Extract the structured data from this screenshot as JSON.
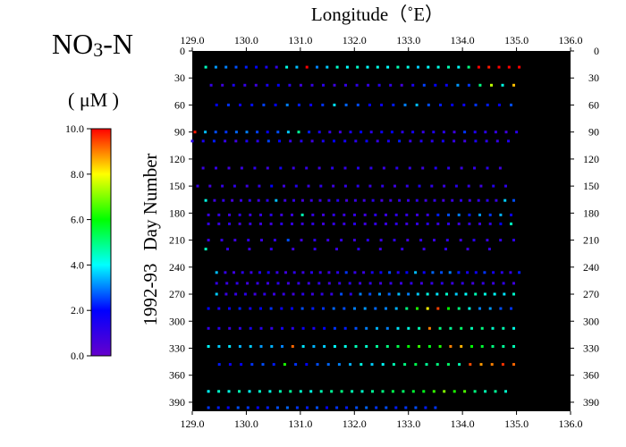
{
  "chart_data": {
    "type": "scatter",
    "title": {
      "base": "NO",
      "subscript": "3",
      "suffix": "-N"
    },
    "unit_label": "( μM )",
    "xlabel": "Longitude（˚E）",
    "ylabel_prefix": "1992-93",
    "ylabel": "Day  Number",
    "xlim": [
      129.0,
      136.0
    ],
    "ylim": [
      0,
      400
    ],
    "y_inverted": true,
    "x_ticks": [
      "129.0",
      "130.0",
      "131.0",
      "132.0",
      "133.0",
      "134.0",
      "135.0",
      "136.0"
    ],
    "y_ticks": [
      "0",
      "30",
      "60",
      "90",
      "120",
      "150",
      "180",
      "210",
      "240",
      "270",
      "300",
      "330",
      "360",
      "390"
    ],
    "colorbar": {
      "min": 0.0,
      "max": 10.0,
      "ticks": [
        "0.0",
        "2.0",
        "4.0",
        "6.0",
        "8.0",
        "10.0"
      ]
    },
    "plot_background": "#000000",
    "colormap": [
      "#6600cc",
      "#0000ff",
      "#00ffff",
      "#00ff00",
      "#ffff00",
      "#ff0000"
    ],
    "rows": [
      {
        "day": 18,
        "x0": 129.25,
        "x1": 135.05,
        "n": 32,
        "vals": [
          4.5,
          3.2,
          3.0,
          2.6,
          2.2,
          2.0,
          1.5,
          1.0,
          4.2,
          3.5,
          10.0,
          3.0,
          3.6,
          4.4,
          4.0,
          4.4,
          4.0,
          4.2,
          4.0,
          4.6,
          4.2,
          3.6,
          4.0,
          4.2,
          4.6,
          4.0,
          5.0,
          10.0,
          9.8,
          10.0,
          10.0,
          10.0
        ]
      },
      {
        "day": 38,
        "x0": 129.35,
        "x1": 134.95,
        "n": 28,
        "vals": [
          1.0,
          0.8,
          1.5,
          1.0,
          0.8,
          1.5,
          2.0,
          1.2,
          0.8,
          1.0,
          1.2,
          0.8,
          1.0,
          1.1,
          1.0,
          1.3,
          1.1,
          0.7,
          1.5,
          2.5,
          2.0,
          1.8,
          3.2,
          2.4,
          5.0,
          7.5,
          4.2,
          8.5
        ]
      },
      {
        "day": 60,
        "x0": 129.45,
        "x1": 134.9,
        "n": 26,
        "vals": [
          2.0,
          2.4,
          1.8,
          2.1,
          2.5,
          2.0,
          3.0,
          2.2,
          1.8,
          2.4,
          3.8,
          2.8,
          2.6,
          2.0,
          1.8,
          2.2,
          3.0,
          3.5,
          2.6,
          2.2,
          2.0,
          1.8,
          2.4,
          2.2,
          2.0,
          2.6
        ]
      },
      {
        "day": 90,
        "x0": 129.05,
        "x1": 135.0,
        "n": 32,
        "vals": [
          9.8,
          3.5,
          2.6,
          2.4,
          2.8,
          3.0,
          2.5,
          2.0,
          2.6,
          3.6,
          4.8,
          2.2,
          1.5,
          1.0,
          0.8,
          1.5,
          2.0,
          1.2,
          1.8,
          2.0,
          1.2,
          1.6,
          1.0,
          1.4,
          1.2,
          0.8,
          2.4,
          1.4,
          1.2,
          1.0,
          0.8,
          1.2
        ]
      },
      {
        "day": 100,
        "x0": 129.0,
        "x1": 134.85,
        "n": 30,
        "vals": [
          1.2,
          1.5,
          2.2,
          1.0,
          0.8,
          1.5,
          1.2,
          2.5,
          2.0,
          1.0,
          1.3,
          0.8,
          1.5,
          2.0,
          1.6,
          1.2,
          1.8,
          1.0,
          1.5,
          2.2,
          1.0,
          1.4,
          1.2,
          1.6,
          1.0,
          0.8,
          1.5,
          1.2,
          1.0,
          1.4
        ]
      },
      {
        "day": 130,
        "x0": 129.2,
        "x1": 134.7,
        "n": 24,
        "vals": [
          0.9,
          1.0,
          0.7,
          0.9,
          1.1,
          0.8,
          1.6,
          0.9,
          1.0,
          0.8,
          1.2,
          1.0,
          1.3,
          1.1,
          0.9,
          1.2,
          1.0,
          0.8,
          1.4,
          1.1,
          0.9,
          1.0,
          1.2,
          0.8
        ]
      },
      {
        "day": 150,
        "x0": 129.1,
        "x1": 134.8,
        "n": 26,
        "vals": [
          0.9,
          0.7,
          1.0,
          1.1,
          0.8,
          1.0,
          2.0,
          0.8,
          1.3,
          0.9,
          1.1,
          0.8,
          1.0,
          1.2,
          0.9,
          1.1,
          0.8,
          1.0,
          1.4,
          1.1,
          0.9,
          1.2,
          1.0,
          0.8,
          1.3,
          1.1
        ]
      },
      {
        "day": 166,
        "x0": 129.25,
        "x1": 134.95,
        "n": 36,
        "vals": [
          4.2,
          0.8,
          1.0,
          0.7,
          0.9,
          1.1,
          0.8,
          1.2,
          3.5,
          0.8,
          1.0,
          0.7,
          0.9,
          0.8,
          1.0,
          1.3,
          0.7,
          0.9,
          0.8,
          1.2,
          0.7,
          0.8,
          1.0,
          0.9,
          1.1,
          0.8,
          1.0,
          0.7,
          0.9,
          1.1,
          0.8,
          1.0,
          1.2,
          0.9,
          3.6,
          2.6
        ]
      },
      {
        "day": 182,
        "x0": 129.3,
        "x1": 134.9,
        "n": 30,
        "vals": [
          0.9,
          1.0,
          0.8,
          1.1,
          0.9,
          1.0,
          1.2,
          0.8,
          0.9,
          4.6,
          1.0,
          0.8,
          1.1,
          0.9,
          1.0,
          0.8,
          1.2,
          0.9,
          1.1,
          1.0,
          0.8,
          0.9,
          2.2,
          2.6,
          3.0,
          2.2,
          3.2,
          2.4,
          3.4,
          1.8
        ]
      },
      {
        "day": 192,
        "x0": 129.3,
        "x1": 134.9,
        "n": 30,
        "vals": [
          1.0,
          0.9,
          1.1,
          0.8,
          1.0,
          0.9,
          0.8,
          1.2,
          1.0,
          0.9,
          1.1,
          0.8,
          1.0,
          0.9,
          1.2,
          0.8,
          1.0,
          0.9,
          1.1,
          0.8,
          1.0,
          1.2,
          0.9,
          1.1,
          0.8,
          1.0,
          0.9,
          1.1,
          2.0,
          4.5
        ]
      },
      {
        "day": 210,
        "x0": 129.3,
        "x1": 134.95,
        "n": 24,
        "vals": [
          0.9,
          1.0,
          0.8,
          1.1,
          0.9,
          1.0,
          2.6,
          0.8,
          1.1,
          0.9,
          1.0,
          0.8,
          1.2,
          0.9,
          1.1,
          0.8,
          1.0,
          0.9,
          1.1,
          0.8,
          1.2,
          0.9,
          1.0,
          1.1
        ]
      },
      {
        "day": 220,
        "x0": 129.25,
        "x1": 134.5,
        "n": 14,
        "vals": [
          4.5,
          1.0,
          0.9,
          1.1,
          0.8,
          1.0,
          0.9,
          1.2,
          0.8,
          1.0,
          0.9,
          1.1,
          0.8,
          1.0
        ]
      },
      {
        "day": 246,
        "x0": 129.45,
        "x1": 135.05,
        "n": 36,
        "vals": [
          3.5,
          1.0,
          0.8,
          1.2,
          0.9,
          1.4,
          1.6,
          1.0,
          0.8,
          1.1,
          0.9,
          1.3,
          1.0,
          0.8,
          1.2,
          2.4,
          1.0,
          0.9,
          1.6,
          1.8,
          2.6,
          1.4,
          2.0,
          3.5,
          1.8,
          2.8,
          2.6,
          3.0,
          2.2,
          1.6,
          1.8,
          2.4,
          1.6,
          1.2,
          1.0,
          2.2
        ]
      },
      {
        "day": 258,
        "x0": 129.45,
        "x1": 134.95,
        "n": 30,
        "vals": [
          1.0,
          0.9,
          1.1,
          0.8,
          1.0,
          0.9,
          1.2,
          0.8,
          1.0,
          0.9,
          1.1,
          0.8,
          1.0,
          1.2,
          0.9,
          1.1,
          0.8,
          1.0,
          0.9,
          1.1,
          0.8,
          1.0,
          1.2,
          0.9,
          1.1,
          0.8,
          1.0,
          0.9,
          1.1,
          0.8
        ]
      },
      {
        "day": 270,
        "x0": 129.45,
        "x1": 134.95,
        "n": 32,
        "vals": [
          3.6,
          0.9,
          1.0,
          1.2,
          0.8,
          1.1,
          0.9,
          1.0,
          0.8,
          1.2,
          0.9,
          1.1,
          1.0,
          2.6,
          1.2,
          3.0,
          2.6,
          3.2,
          2.8,
          3.5,
          3.0,
          3.6,
          4.2,
          3.8,
          4.4,
          3.6,
          4.0,
          4.6,
          4.2,
          4.0,
          3.8,
          4.4
        ]
      },
      {
        "day": 286,
        "x0": 129.3,
        "x1": 134.9,
        "n": 30,
        "vals": [
          2.0,
          1.5,
          1.8,
          2.2,
          1.6,
          2.0,
          2.4,
          1.8,
          2.0,
          2.6,
          2.2,
          2.4,
          2.8,
          2.6,
          3.0,
          3.2,
          2.8,
          3.0,
          3.4,
          5.0,
          6.2,
          8.0,
          9.5,
          6.0,
          5.0,
          4.2,
          3.0,
          3.2,
          2.6,
          2.4
        ]
      },
      {
        "day": 308,
        "x0": 129.3,
        "x1": 134.95,
        "n": 30,
        "vals": [
          1.0,
          1.2,
          0.9,
          1.1,
          1.5,
          1.2,
          1.0,
          1.6,
          1.2,
          1.8,
          1.5,
          2.0,
          2.4,
          2.2,
          2.6,
          3.0,
          3.4,
          3.0,
          3.8,
          4.2,
          4.6,
          9.0,
          5.0,
          4.8,
          5.2,
          4.6,
          5.0,
          4.4,
          4.6,
          4.2
        ]
      },
      {
        "day": 328,
        "x0": 129.3,
        "x1": 134.95,
        "n": 30,
        "vals": [
          4.0,
          3.6,
          3.8,
          3.4,
          3.6,
          3.2,
          3.4,
          3.0,
          9.2,
          3.8,
          3.4,
          3.6,
          4.0,
          4.2,
          4.6,
          4.4,
          4.8,
          5.0,
          5.4,
          6.0,
          6.4,
          5.8,
          6.2,
          9.0,
          8.6,
          6.0,
          5.6,
          5.0,
          4.8,
          4.6
        ]
      },
      {
        "day": 348,
        "x0": 129.5,
        "x1": 134.95,
        "n": 28,
        "vals": [
          2.2,
          1.8,
          2.0,
          2.4,
          2.6,
          2.2,
          6.2,
          2.4,
          2.0,
          2.6,
          2.8,
          3.0,
          3.4,
          4.2,
          3.6,
          4.0,
          4.6,
          5.0,
          5.4,
          4.8,
          5.0,
          5.2,
          4.6,
          9.4,
          8.8,
          9.0,
          9.6,
          9.2
        ]
      },
      {
        "day": 378,
        "x0": 129.3,
        "x1": 134.8,
        "n": 30,
        "vals": [
          4.0,
          4.4,
          4.2,
          4.6,
          4.0,
          4.4,
          4.2,
          4.6,
          4.8,
          4.4,
          4.2,
          4.6,
          4.8,
          5.0,
          4.6,
          4.4,
          4.8,
          5.0,
          5.4,
          5.2,
          5.6,
          5.8,
          6.4,
          7.0,
          6.2,
          6.6,
          5.0,
          4.6,
          4.8,
          4.4
        ]
      },
      {
        "day": 396,
        "x0": 129.3,
        "x1": 133.5,
        "n": 24,
        "vals": [
          2.4,
          2.2,
          2.0,
          2.6,
          2.4,
          2.0,
          2.2,
          2.6,
          2.8,
          2.4,
          2.2,
          2.6,
          2.0,
          2.4,
          2.2,
          2.6,
          2.8,
          2.4,
          2.6,
          2.2,
          2.4,
          2.6,
          2.2,
          2.4
        ]
      }
    ]
  }
}
